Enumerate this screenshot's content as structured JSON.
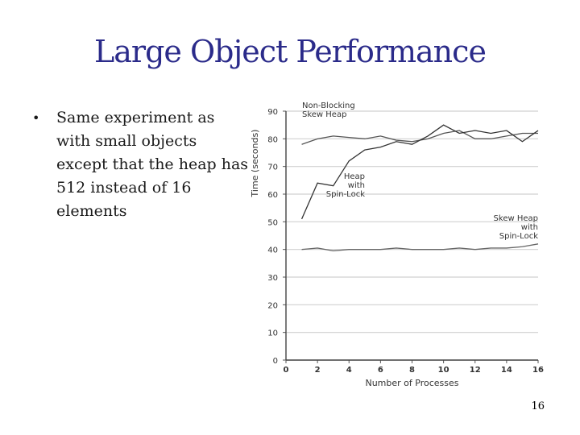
{
  "slide": {
    "title": "Large Object Performance",
    "bullets": [
      "Same experiment as with small objects except that the heap has 512 instead of 16 elements"
    ],
    "page_number": "16"
  },
  "chart_data": {
    "type": "line",
    "xlabel": "Number of Processes",
    "ylabel": "Time (seconds)",
    "xlim": [
      0,
      16
    ],
    "ylim": [
      0,
      90
    ],
    "xticks": [
      0,
      2,
      4,
      6,
      8,
      10,
      12,
      14,
      16
    ],
    "yticks": [
      0,
      10,
      20,
      30,
      40,
      50,
      60,
      70,
      80,
      90
    ],
    "grid": "horizontal",
    "series": [
      {
        "name": "Non-Blocking Skew Heap",
        "x": [
          1,
          2,
          3,
          4,
          5,
          6,
          7,
          8,
          9,
          10,
          11,
          12,
          13,
          14,
          15,
          16
        ],
        "values": [
          78,
          80,
          81,
          80.5,
          80,
          81,
          79.5,
          79,
          80,
          82,
          83,
          80,
          80,
          81,
          82,
          82
        ],
        "color": "#555555"
      },
      {
        "name": "Heap with Spin-Lock",
        "x": [
          1,
          2,
          3,
          4,
          5,
          6,
          7,
          8,
          9,
          10,
          11,
          12,
          13,
          14,
          15,
          16
        ],
        "values": [
          51,
          64,
          63,
          72,
          76,
          77,
          79,
          78,
          81,
          85,
          82,
          83,
          82,
          83,
          79,
          83
        ],
        "color": "#333333"
      },
      {
        "name": "Skew Heap with Spin-Lock",
        "x": [
          1,
          2,
          3,
          4,
          5,
          6,
          7,
          8,
          9,
          10,
          11,
          12,
          13,
          14,
          15,
          16
        ],
        "values": [
          40,
          40.5,
          39.5,
          40,
          40,
          40,
          40.5,
          40,
          40,
          40,
          40.5,
          40,
          40.5,
          40.5,
          41,
          42
        ],
        "color": "#666666"
      }
    ],
    "annotations": [
      {
        "lines": [
          "Non-Blocking",
          "Skew Heap"
        ],
        "series": 0
      },
      {
        "lines": [
          "Heap",
          "with",
          "Spin-Lock"
        ],
        "series": 1
      },
      {
        "lines": [
          "Skew Heap",
          "with",
          "Spin-Lock"
        ],
        "series": 2
      }
    ]
  }
}
